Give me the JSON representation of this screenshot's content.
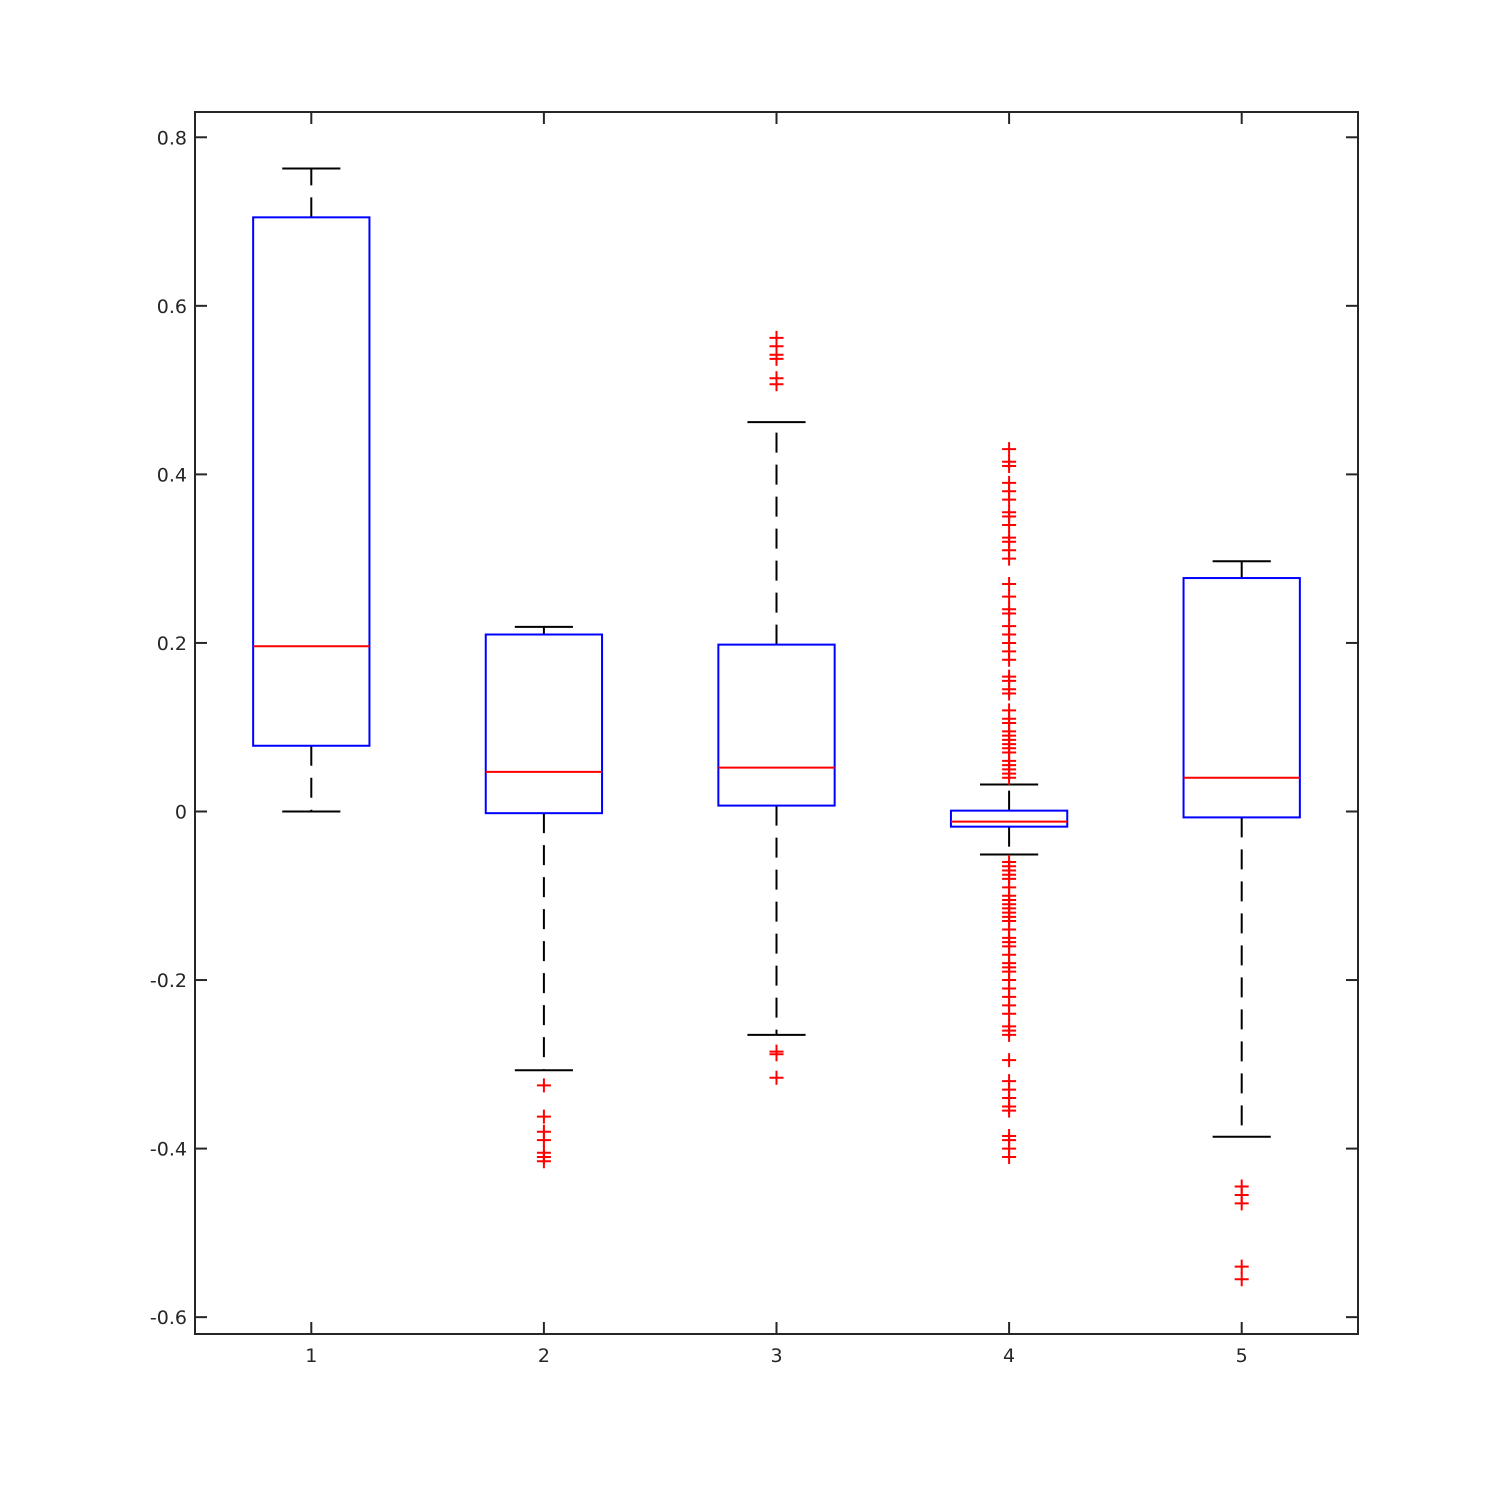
{
  "chart_data": {
    "type": "boxplot",
    "title": "",
    "xlabel": "",
    "ylabel": "",
    "xlim": [
      0.5,
      5.5
    ],
    "ylim": [
      -0.62,
      0.83
    ],
    "x_ticks": [
      "1",
      "2",
      "3",
      "4",
      "5"
    ],
    "y_ticks": [
      "-0.6",
      "-0.4",
      "-0.2",
      "0",
      "0.2",
      "0.4",
      "0.6",
      "0.8"
    ],
    "y_tick_values": [
      -0.6,
      -0.4,
      -0.2,
      0,
      0.2,
      0.4,
      0.6,
      0.8
    ],
    "grid": false,
    "colors": {
      "box": "#0000ff",
      "median": "#ff0000",
      "whisker": "#000000",
      "outlier": "#ff0000",
      "axes": "#262626"
    },
    "boxes": [
      {
        "category": "1",
        "whisker_low": 0.0,
        "q1": 0.078,
        "median": 0.196,
        "q3": 0.705,
        "whisker_high": 0.763,
        "outliers": []
      },
      {
        "category": "2",
        "whisker_low": -0.307,
        "q1": -0.002,
        "median": 0.047,
        "q3": 0.21,
        "whisker_high": 0.219,
        "outliers": [
          -0.325,
          -0.362,
          -0.38,
          -0.39,
          -0.405,
          -0.41,
          -0.415
        ]
      },
      {
        "category": "3",
        "whisker_low": -0.265,
        "q1": 0.007,
        "median": 0.052,
        "q3": 0.198,
        "whisker_high": 0.462,
        "outliers": [
          0.562,
          0.552,
          0.542,
          0.537,
          0.514,
          0.507,
          -0.285,
          -0.288,
          -0.316
        ]
      },
      {
        "category": "4",
        "whisker_low": -0.051,
        "q1": -0.018,
        "median": -0.012,
        "q3": 0.001,
        "whisker_high": 0.032,
        "outliers": [
          0.43,
          0.415,
          0.41,
          0.39,
          0.38,
          0.37,
          0.355,
          0.35,
          0.34,
          0.325,
          0.32,
          0.31,
          0.3,
          0.27,
          0.255,
          0.24,
          0.235,
          0.22,
          0.21,
          0.2,
          0.19,
          0.18,
          0.16,
          0.155,
          0.145,
          0.14,
          0.12,
          0.11,
          0.105,
          0.095,
          0.09,
          0.085,
          0.08,
          0.075,
          0.07,
          0.06,
          0.055,
          0.05,
          0.045,
          0.04,
          -0.06,
          -0.065,
          -0.07,
          -0.075,
          -0.08,
          -0.09,
          -0.1,
          -0.105,
          -0.11,
          -0.115,
          -0.12,
          -0.125,
          -0.13,
          -0.14,
          -0.15,
          -0.155,
          -0.16,
          -0.17,
          -0.18,
          -0.185,
          -0.19,
          -0.2,
          -0.21,
          -0.22,
          -0.23,
          -0.24,
          -0.255,
          -0.26,
          -0.265,
          -0.295,
          -0.32,
          -0.33,
          -0.34,
          -0.35,
          -0.355,
          -0.385,
          -0.39,
          -0.4,
          -0.41
        ]
      },
      {
        "category": "5",
        "whisker_low": -0.386,
        "q1": -0.007,
        "median": 0.04,
        "q3": 0.277,
        "whisker_high": 0.297,
        "outliers": [
          -0.445,
          -0.455,
          -0.465,
          -0.54,
          -0.555
        ]
      }
    ]
  }
}
